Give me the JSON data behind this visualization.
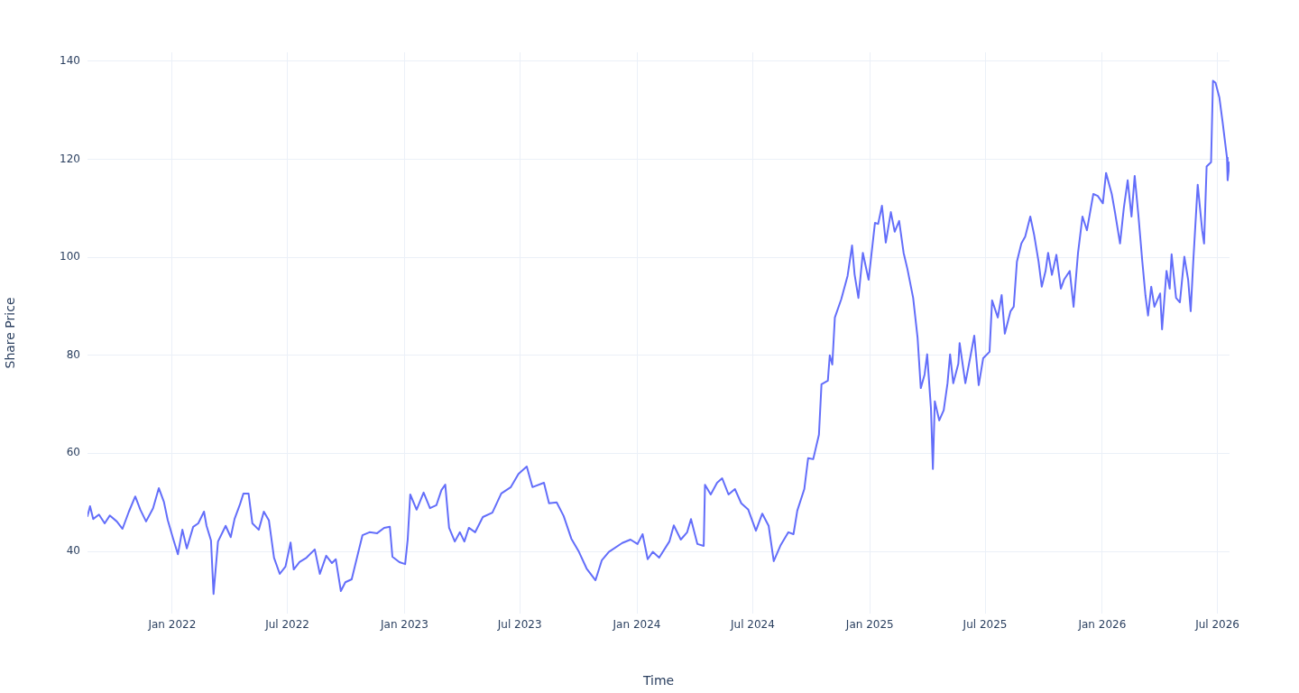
{
  "chart_data": {
    "type": "line",
    "xlabel": "Time",
    "ylabel": "Share Price",
    "x": [
      "2021-08-21",
      "2021-08-25",
      "2021-08-30",
      "2021-09-08",
      "2021-09-17",
      "2021-09-25",
      "2021-10-06",
      "2021-10-15",
      "2021-10-25",
      "2021-11-04",
      "2021-11-12",
      "2021-11-21",
      "2021-12-02",
      "2021-12-11",
      "2021-12-19",
      "2021-12-25",
      "2022-01-02",
      "2022-01-10",
      "2022-01-17",
      "2022-01-24",
      "2022-02-03",
      "2022-02-11",
      "2022-02-20",
      "2022-02-24",
      "2022-03-03",
      "2022-03-07",
      "2022-03-14",
      "2022-03-26",
      "2022-04-03",
      "2022-04-09",
      "2022-04-17",
      "2022-04-23",
      "2022-05-01",
      "2022-05-07",
      "2022-05-17",
      "2022-05-25",
      "2022-06-02",
      "2022-06-10",
      "2022-06-19",
      "2022-06-28",
      "2022-07-06",
      "2022-07-11",
      "2022-07-20",
      "2022-07-31",
      "2022-08-13",
      "2022-08-21",
      "2022-08-31",
      "2022-09-09",
      "2022-09-15",
      "2022-09-23",
      "2022-09-30",
      "2022-10-10",
      "2022-10-19",
      "2022-10-27",
      "2022-11-07",
      "2022-11-19",
      "2022-11-30",
      "2022-12-09",
      "2022-12-13",
      "2022-12-24",
      "2023-01-02",
      "2023-01-06",
      "2023-01-10",
      "2023-01-20",
      "2023-01-31",
      "2023-02-10",
      "2023-02-20",
      "2023-02-28",
      "2023-03-06",
      "2023-03-12",
      "2023-03-21",
      "2023-03-29",
      "2023-04-05",
      "2023-04-12",
      "2023-04-22",
      "2023-05-04",
      "2023-05-19",
      "2023-06-02",
      "2023-06-17",
      "2023-06-29",
      "2023-07-12",
      "2023-07-21",
      "2023-08-08",
      "2023-08-16",
      "2023-08-28",
      "2023-09-08",
      "2023-09-20",
      "2023-10-02",
      "2023-10-14",
      "2023-10-28",
      "2023-11-07",
      "2023-11-18",
      "2023-12-09",
      "2023-12-22",
      "2024-01-02",
      "2024-01-10",
      "2024-01-18",
      "2024-01-26",
      "2024-02-05",
      "2024-02-21",
      "2024-02-28",
      "2024-03-10",
      "2024-03-20",
      "2024-03-26",
      "2024-04-05",
      "2024-04-15",
      "2024-04-17",
      "2024-04-26",
      "2024-05-06",
      "2024-05-14",
      "2024-05-24",
      "2024-06-03",
      "2024-06-13",
      "2024-06-24",
      "2024-07-06",
      "2024-07-16",
      "2024-07-26",
      "2024-08-03",
      "2024-08-14",
      "2024-08-26",
      "2024-09-03",
      "2024-09-09",
      "2024-09-20",
      "2024-09-26",
      "2024-10-04",
      "2024-10-13",
      "2024-10-17",
      "2024-10-27",
      "2024-10-30",
      "2024-11-03",
      "2024-11-07",
      "2024-11-17",
      "2024-11-27",
      "2024-12-04",
      "2024-12-08",
      "2024-12-14",
      "2024-12-21",
      "2024-12-30",
      "2025-01-09",
      "2025-01-14",
      "2025-01-20",
      "2025-01-26",
      "2025-02-03",
      "2025-02-09",
      "2025-02-16",
      "2025-02-23",
      "2025-03-01",
      "2025-03-10",
      "2025-03-17",
      "2025-03-22",
      "2025-03-28",
      "2025-04-01",
      "2025-04-07",
      "2025-04-10",
      "2025-04-13",
      "2025-04-20",
      "2025-04-27",
      "2025-05-03",
      "2025-05-07",
      "2025-05-12",
      "2025-05-20",
      "2025-05-22",
      "2025-05-31",
      "2025-06-08",
      "2025-06-14",
      "2025-06-21",
      "2025-06-28",
      "2025-07-08",
      "2025-07-12",
      "2025-07-21",
      "2025-07-27",
      "2025-08-01",
      "2025-08-10",
      "2025-08-15",
      "2025-08-20",
      "2025-08-27",
      "2025-09-02",
      "2025-09-10",
      "2025-09-16",
      "2025-09-23",
      "2025-09-28",
      "2025-10-04",
      "2025-10-08",
      "2025-10-14",
      "2025-10-21",
      "2025-10-28",
      "2025-11-02",
      "2025-11-11",
      "2025-11-17",
      "2025-11-24",
      "2025-12-01",
      "2025-12-08",
      "2025-12-18",
      "2025-12-25",
      "2026-01-02",
      "2026-01-07",
      "2026-01-16",
      "2026-01-21",
      "2026-01-29",
      "2026-02-04",
      "2026-02-10",
      "2026-02-16",
      "2026-02-21",
      "2026-02-27",
      "2026-03-05",
      "2026-03-10",
      "2026-03-14",
      "2026-03-19",
      "2026-03-24",
      "2026-04-02",
      "2026-04-05",
      "2026-04-12",
      "2026-04-17",
      "2026-04-20",
      "2026-04-27",
      "2026-05-03",
      "2026-05-10",
      "2026-05-16",
      "2026-05-20",
      "2026-05-24",
      "2026-05-31",
      "2026-06-07",
      "2026-06-10",
      "2026-06-14",
      "2026-06-21",
      "2026-06-24",
      "2026-06-28",
      "2026-07-04",
      "2026-07-09",
      "2026-07-16",
      "2026-07-17",
      "2026-07-20"
    ],
    "series": [
      {
        "color": "#636efa",
        "values": [
          47.2,
          49.2,
          46.6,
          47.5,
          45.7,
          47.3,
          46.1,
          44.6,
          48.1,
          51.2,
          48.5,
          46.1,
          48.8,
          52.9,
          50.1,
          46.4,
          42.8,
          39.4,
          44.4,
          40.6,
          45.0,
          45.7,
          48.1,
          45.2,
          42.2,
          31.3,
          42.0,
          45.2,
          42.9,
          46.6,
          49.4,
          51.8,
          51.8,
          45.7,
          44.4,
          48.1,
          46.3,
          38.7,
          35.4,
          36.9,
          41.8,
          36.3,
          37.8,
          38.7,
          40.4,
          35.4,
          39.1,
          37.6,
          38.4,
          31.9,
          33.7,
          34.3,
          39.1,
          43.3,
          43.9,
          43.7,
          44.8,
          45.0,
          38.9,
          37.8,
          37.4,
          42.4,
          51.6,
          48.5,
          52.0,
          48.8,
          49.4,
          52.5,
          53.6,
          44.8,
          42.0,
          43.9,
          42.0,
          44.8,
          43.9,
          47.0,
          47.9,
          51.8,
          53.1,
          55.8,
          57.3,
          53.1,
          54.0,
          49.8,
          50.0,
          47.2,
          42.6,
          39.9,
          36.5,
          34.1,
          38.2,
          39.9,
          41.7,
          42.4,
          41.5,
          43.5,
          38.4,
          39.9,
          38.7,
          42.0,
          45.3,
          42.4,
          43.9,
          46.6,
          41.5,
          41.1,
          53.6,
          51.6,
          54.0,
          54.9,
          51.6,
          52.7,
          49.8,
          48.5,
          44.2,
          47.7,
          45.2,
          38.0,
          41.3,
          43.9,
          43.5,
          48.3,
          52.7,
          59.0,
          58.8,
          63.8,
          74.1,
          74.8,
          80.0,
          78.1,
          87.7,
          91.4,
          96.2,
          102.4,
          96.5,
          91.7,
          100.9,
          95.4,
          107.0,
          106.8,
          110.5,
          103.0,
          109.2,
          105.2,
          107.4,
          100.9,
          97.6,
          91.7,
          83.5,
          73.3,
          76.1,
          80.2,
          69.1,
          56.8,
          70.6,
          66.7,
          68.8,
          74.3,
          80.2,
          74.3,
          78.3,
          82.5,
          74.3,
          79.8,
          84.0,
          73.9,
          79.4,
          80.7,
          91.2,
          87.7,
          92.3,
          84.4,
          89.0,
          89.9,
          99.1,
          102.8,
          104.2,
          108.3,
          104.6,
          99.1,
          94.0,
          97.2,
          100.9,
          96.4,
          100.5,
          93.6,
          95.4,
          97.2,
          89.9,
          100.9,
          108.3,
          105.5,
          112.9,
          112.5,
          111.0,
          117.2,
          112.9,
          109.2,
          102.8,
          110.1,
          115.7,
          108.3,
          116.6,
          108.3,
          99.1,
          92.1,
          88.1,
          94.0,
          89.9,
          92.6,
          85.3,
          97.2,
          93.6,
          100.6,
          91.7,
          90.8,
          100.1,
          95.4,
          89.0,
          99.1,
          114.8,
          105.5,
          102.8,
          118.5,
          119.4,
          136.0,
          135.6,
          132.6,
          127.7,
          120.3,
          115.7,
          119.4
        ]
      }
    ],
    "xlim": [
      "2021-08-21",
      "2026-07-20"
    ],
    "ylim": [
      27.3,
      141.8
    ],
    "xticks": [
      {
        "value": "2022-01-01",
        "label": "Jan 2022"
      },
      {
        "value": "2022-07-01",
        "label": "Jul 2022"
      },
      {
        "value": "2023-01-01",
        "label": "Jan 2023"
      },
      {
        "value": "2023-07-01",
        "label": "Jul 2023"
      },
      {
        "value": "2024-01-01",
        "label": "Jan 2024"
      },
      {
        "value": "2024-07-01",
        "label": "Jul 2024"
      },
      {
        "value": "2025-01-01",
        "label": "Jan 2025"
      },
      {
        "value": "2025-07-01",
        "label": "Jul 2025"
      },
      {
        "value": "2026-01-01",
        "label": "Jan 2026"
      },
      {
        "value": "2026-07-01",
        "label": "Jul 2026"
      }
    ],
    "yticks": [
      40,
      60,
      80,
      100,
      120,
      140
    ],
    "grid": true,
    "marker": "none",
    "line_style": "solid",
    "legend": false
  }
}
